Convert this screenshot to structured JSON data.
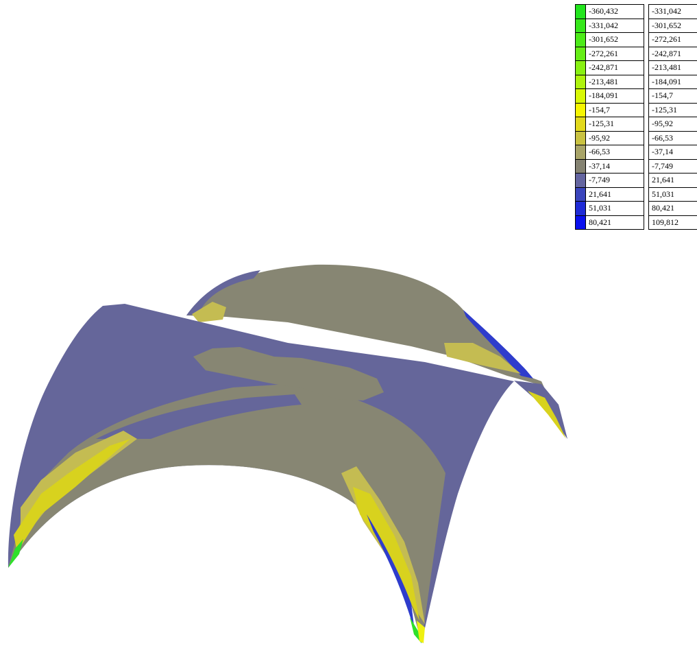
{
  "legend": {
    "rows": [
      {
        "from": "-360,432",
        "to": "-331,042",
        "color": "#22e51d"
      },
      {
        "from": "-331,042",
        "to": "-301,652",
        "color": "#36e81b"
      },
      {
        "from": "-301,652",
        "to": "-272,261",
        "color": "#4ceb18"
      },
      {
        "from": "-272,261",
        "to": "-242,871",
        "color": "#66ee16"
      },
      {
        "from": "-242,871",
        "to": "-213,481",
        "color": "#88f112"
      },
      {
        "from": "-213,481",
        "to": "-184,091",
        "color": "#aef30d"
      },
      {
        "from": "-184,091",
        "to": "-154,7",
        "color": "#d8f806"
      },
      {
        "from": "-154,7",
        "to": "-125,31",
        "color": "#f6f600"
      },
      {
        "from": "-125,31",
        "to": "-95,92",
        "color": "#e2d91c"
      },
      {
        "from": "-95,92",
        "to": "-66,53",
        "color": "#c9c241"
      },
      {
        "from": "-66,53",
        "to": "-37,14",
        "color": "#a8a468"
      },
      {
        "from": "-37,14",
        "to": "-7,749",
        "color": "#858372"
      },
      {
        "from": "-7,749",
        "to": "21,641",
        "color": "#6465a0"
      },
      {
        "from": "21,641",
        "to": "51,031",
        "color": "#3a45bc"
      },
      {
        "from": "51,031",
        "to": "80,421",
        "color": "#1f2bd6"
      },
      {
        "from": "80,421",
        "to": "109,812",
        "color": "#0a10ee"
      }
    ]
  },
  "surface": {
    "colors": {
      "olive": "#878673",
      "slate": "#65669a",
      "blue": "#2e3ccc",
      "yellow": "#d8d21e",
      "khaki": "#c4bc52",
      "green": "#2ee02a",
      "yellow_bright": "#eef010"
    }
  }
}
